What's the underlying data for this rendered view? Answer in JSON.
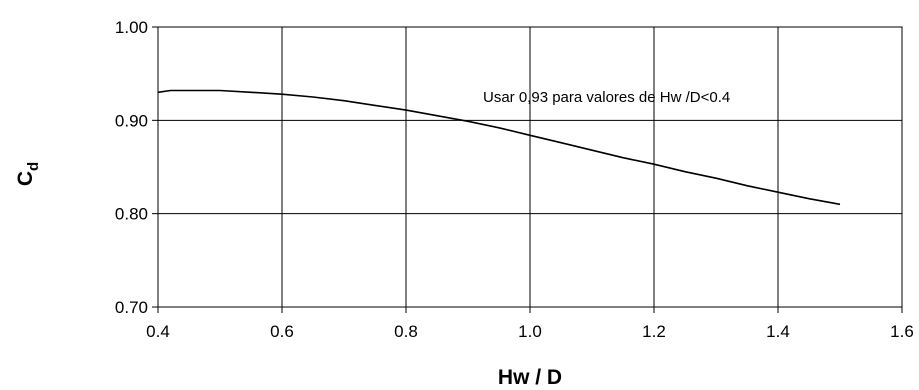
{
  "chart_data": {
    "type": "line",
    "title": "",
    "xlabel": "Hw / D",
    "ylabel_main": "C",
    "ylabel_sub": "d",
    "xlim": [
      0.4,
      1.6
    ],
    "ylim": [
      0.7,
      1.0
    ],
    "x_ticks": [
      "0.4",
      "0.6",
      "0.8",
      "1.0",
      "1.2",
      "1.4",
      "1.6"
    ],
    "y_ticks": [
      "0.70",
      "0.80",
      "0.90",
      "1.00"
    ],
    "grid": true,
    "annotation": "Usar 0,93 para valores de Hw /D<0.4",
    "line_color": "#000000",
    "series": [
      {
        "x": [
          0.4,
          0.42,
          0.45,
          0.5,
          0.55,
          0.6,
          0.65,
          0.7,
          0.75,
          0.8,
          0.85,
          0.9,
          0.95,
          1.0,
          1.05,
          1.1,
          1.15,
          1.2,
          1.25,
          1.3,
          1.35,
          1.4,
          1.45,
          1.5
        ],
        "y": [
          0.93,
          0.932,
          0.932,
          0.932,
          0.93,
          0.928,
          0.925,
          0.921,
          0.916,
          0.911,
          0.905,
          0.899,
          0.892,
          0.884,
          0.876,
          0.868,
          0.86,
          0.853,
          0.845,
          0.838,
          0.83,
          0.823,
          0.816,
          0.81
        ]
      }
    ]
  }
}
